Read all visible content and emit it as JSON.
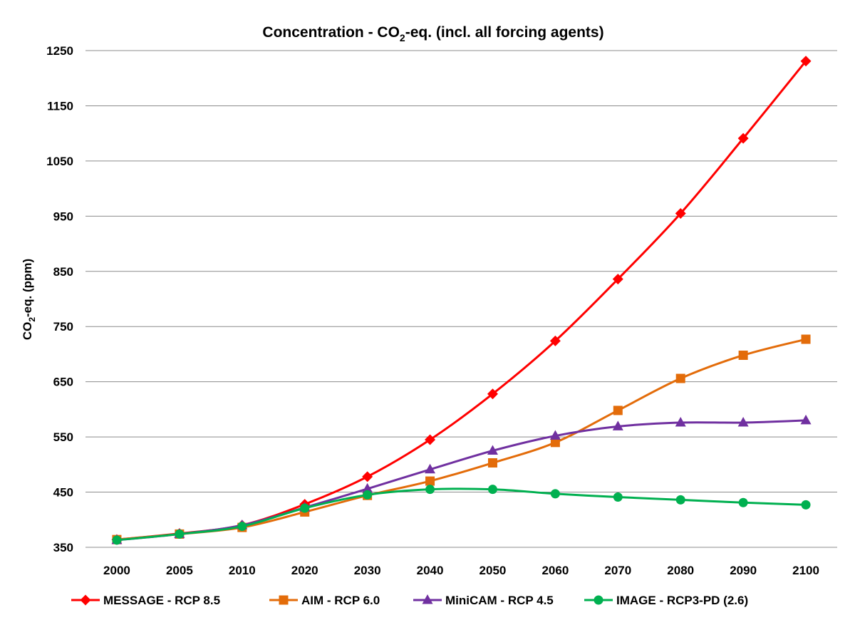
{
  "chart_data": {
    "type": "line",
    "title": {
      "prefix": "Concentration - CO",
      "subscript": "2",
      "suffix": "-eq. (incl. all forcing agents)"
    },
    "ylabel": {
      "prefix": "CO",
      "subscript": "2",
      "suffix": "-eq. (ppm)"
    },
    "xlabel": "",
    "categories": [
      "2000",
      "2005",
      "2010",
      "2020",
      "2030",
      "2040",
      "2050",
      "2060",
      "2070",
      "2080",
      "2090",
      "2100"
    ],
    "ylim": [
      350,
      1250
    ],
    "yticks": [
      350,
      450,
      550,
      650,
      750,
      850,
      950,
      1050,
      1150,
      1250
    ],
    "grid": true,
    "legend_position": "bottom",
    "series": [
      {
        "name": "MESSAGE - RCP 8.5",
        "color": "#ff0000",
        "marker": "diamond",
        "values": [
          364,
          375,
          390,
          428,
          478,
          545,
          628,
          724,
          836,
          955,
          1091,
          1231
        ]
      },
      {
        "name": "AIM - RCP 6.0",
        "color": "#e36c0a",
        "marker": "square",
        "values": [
          364,
          374,
          386,
          414,
          444,
          470,
          503,
          540,
          598,
          656,
          698,
          727
        ]
      },
      {
        "name": "MiniCAM - RCP 4.5",
        "color": "#7030a0",
        "marker": "triangle",
        "values": [
          363,
          374,
          390,
          422,
          456,
          491,
          525,
          552,
          569,
          576,
          576,
          580
        ]
      },
      {
        "name": "IMAGE - RCP3-PD (2.6)",
        "color": "#00b050",
        "marker": "circle",
        "values": [
          363,
          374,
          388,
          421,
          445,
          455,
          455,
          447,
          441,
          436,
          431,
          427
        ]
      }
    ]
  }
}
